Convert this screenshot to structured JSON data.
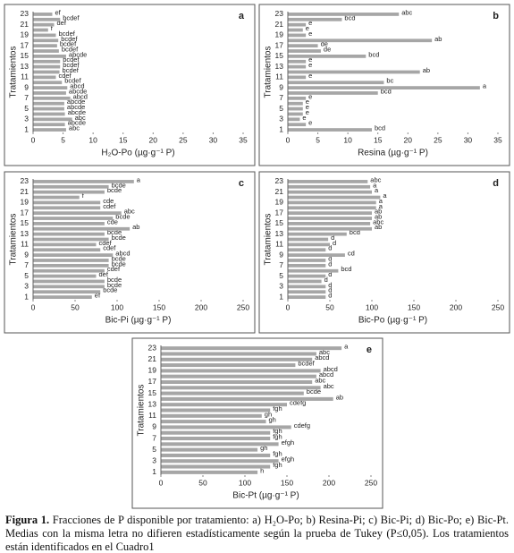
{
  "chart_data": [
    {
      "type": "bar",
      "panel": "a",
      "xlabel": "H₂O-Po (µg·g⁻¹ P)",
      "ylabel": "Tratamientos",
      "categories": [
        "1",
        null,
        "3",
        null,
        "5",
        null,
        "7",
        null,
        "9",
        null,
        "11",
        null,
        "13",
        null,
        "15",
        null,
        "17",
        null,
        "19",
        null,
        "21",
        null,
        "23"
      ],
      "values": [
        5.5,
        5.3,
        6.5,
        5.3,
        5.2,
        5.2,
        6.2,
        5.5,
        5.7,
        4.8,
        3.8,
        4.4,
        4.5,
        4.5,
        5.5,
        4.3,
        4.0,
        4.2,
        3.8,
        2.5,
        3.5,
        4.5,
        3.2
      ],
      "annotations": [
        "abc",
        "abcde",
        "abc",
        "abcde",
        "abcde",
        "abcde",
        "abcd",
        "abcde",
        "abcd",
        "bcdef",
        "cdef",
        "bcdef",
        "bcdef",
        "bcdef",
        "abcde",
        "bcdef",
        "bcdef",
        "bcdef",
        "bcdef",
        "f",
        "def",
        "bcdef",
        "ef"
      ],
      "color": "#a6a6a6",
      "xlim": [
        0,
        35
      ],
      "xticks": [
        0,
        5,
        10,
        15,
        20,
        25,
        30,
        35
      ]
    },
    {
      "type": "bar",
      "panel": "b",
      "xlabel": "Resina (µg·g⁻¹ P)",
      "ylabel": "Tratamientos",
      "categories": [
        "1",
        null,
        "3",
        null,
        "5",
        null,
        "7",
        null,
        "9",
        null,
        "11",
        null,
        "13",
        null,
        "15",
        null,
        "17",
        null,
        "19",
        null,
        "21",
        null,
        "23"
      ],
      "values": [
        14,
        3,
        2,
        2.5,
        2.5,
        2.5,
        3,
        15,
        32,
        16,
        3,
        22,
        3,
        3,
        13,
        5.5,
        5,
        24,
        3,
        2.5,
        3,
        9,
        18.5
      ],
      "annotations": [
        "bcd",
        "e",
        "e",
        "e",
        "e",
        "e",
        "e",
        "bcd",
        "a",
        "bc",
        "e",
        "ab",
        "e",
        "e",
        "bcd",
        "de",
        "de",
        "ab",
        "e",
        "e",
        "e",
        "bcd",
        "abc"
      ],
      "color": "#a6a6a6",
      "xlim": [
        0,
        35
      ],
      "xticks": [
        0,
        5,
        10,
        15,
        20,
        25,
        30,
        35
      ]
    },
    {
      "type": "bar",
      "panel": "c",
      "xlabel": "Bic-Pi (µg·g⁻¹ P)",
      "ylabel": "Tratamientos",
      "categories": [
        "1",
        null,
        "3",
        null,
        "5",
        null,
        "7",
        null,
        "9",
        null,
        "11",
        null,
        "13",
        null,
        "15",
        null,
        "17",
        null,
        "19",
        null,
        "21",
        null,
        "23"
      ],
      "values": [
        70,
        80,
        85,
        85,
        75,
        85,
        90,
        90,
        95,
        80,
        75,
        90,
        85,
        115,
        85,
        95,
        105,
        80,
        80,
        55,
        85,
        90,
        120
      ],
      "annotations": [
        "ef",
        "bcde",
        "bcde",
        "bcde",
        "def",
        "cdef",
        "bcde",
        "bcde",
        "abcd",
        "cdef",
        "cdef",
        "bcde",
        "bcde",
        "ab",
        "cde",
        "bcde",
        "abc",
        "cdef",
        "cde",
        "f",
        "bcde",
        "bcde",
        "a"
      ],
      "color": "#a6a6a6",
      "xlim": [
        0,
        250
      ],
      "xticks": [
        0,
        50,
        100,
        150,
        200,
        250
      ]
    },
    {
      "type": "bar",
      "panel": "d",
      "xlabel": "Bic-Po (µg·g⁻¹ P)",
      "ylabel": "Tratamientos",
      "categories": [
        "1",
        null,
        "3",
        null,
        "5",
        null,
        "7",
        null,
        "9",
        null,
        "11",
        null,
        "13",
        null,
        "15",
        null,
        "17",
        null,
        "19",
        null,
        "21",
        null,
        "23"
      ],
      "values": [
        45,
        45,
        45,
        40,
        45,
        60,
        45,
        45,
        68,
        45,
        50,
        48,
        70,
        100,
        98,
        100,
        100,
        105,
        105,
        110,
        100,
        98,
        95
      ],
      "annotations": [
        "d",
        "d",
        "d",
        "d",
        "d",
        "bcd",
        "d",
        "d",
        "cd",
        "d",
        "d",
        "d",
        "bcd",
        "ab",
        "abc",
        "ab",
        "ab",
        "a",
        "a",
        "a",
        "a",
        "a",
        "abc"
      ],
      "color": "#a6a6a6",
      "xlim": [
        0,
        250
      ],
      "xticks": [
        0,
        50,
        100,
        150,
        200,
        250
      ]
    },
    {
      "type": "bar",
      "panel": "e",
      "xlabel": "Bic-Pt (µg·g⁻¹ P)",
      "ylabel": "Tratamientos",
      "categories": [
        "1",
        null,
        "3",
        null,
        "5",
        null,
        "7",
        null,
        "9",
        null,
        "11",
        null,
        "13",
        null,
        "15",
        null,
        "17",
        null,
        "19",
        null,
        "21",
        null,
        "23"
      ],
      "values": [
        115,
        130,
        140,
        130,
        115,
        140,
        130,
        130,
        155,
        125,
        120,
        130,
        150,
        205,
        170,
        190,
        180,
        185,
        190,
        160,
        180,
        185,
        215
      ],
      "annotations": [
        "h",
        "fgh",
        "efgh",
        "fgh",
        "gh",
        "efgh",
        "fgh",
        "fgh",
        "cdefg",
        "gh",
        "gh",
        "fgh",
        "cdefg",
        "ab",
        "bcde",
        "abc",
        "abc",
        "abcd",
        "abcd",
        "bcdef",
        "abcd",
        "abc",
        "a"
      ],
      "color": "#a6a6a6",
      "xlim": [
        0,
        250
      ],
      "xticks": [
        0,
        50,
        100,
        150,
        200,
        250
      ]
    }
  ],
  "caption": {
    "label": "Figura 1.",
    "text": "Fracciones de P disponible por tratamiento: a) H₂O-Po; b) Resina-Pi; c) Bic-Pi; d) Bic-Po; e) Bic-Pt. Medias con la misma letra no difieren estadísticamente según la prueba de Tukey (P≤0,05). Los tratamientos están identificados en el Cuadro1"
  }
}
